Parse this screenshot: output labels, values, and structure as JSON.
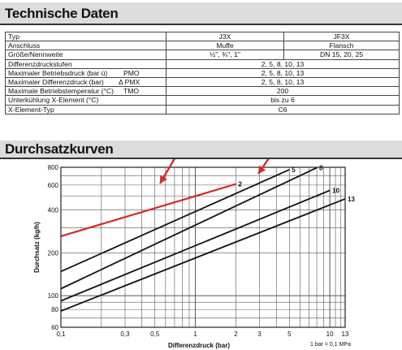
{
  "specs": {
    "title": "Technische Daten",
    "columns": [
      "Typ",
      "J3X",
      "JF3X"
    ],
    "rows": [
      {
        "label": "Anschluss",
        "symbol": "",
        "j3x": "Muffe",
        "jf3x": "Flansch"
      },
      {
        "label": "Größe/Nennweite",
        "symbol": "",
        "j3x": "½\", ¾\", 1\"",
        "jf3x": "DN 15, 20, 25"
      },
      {
        "label": "Differenzdruckstufen",
        "symbol": "",
        "both": "2, 5, 8, 10, 13"
      },
      {
        "label": "Maximaler Betriebsdruck (bar ü)",
        "symbol": "PMO",
        "both": "2, 5, 8, 10, 13"
      },
      {
        "label": "Maximaler Differenzdruck (bar)",
        "symbol": "Δ PMX",
        "both": "2, 5, 8, 10, 13"
      },
      {
        "label": "Maximale Betriebstemperatur (°C)",
        "symbol": "TMO",
        "both": "200"
      },
      {
        "label": "Unterkühlung X-Element (°C)",
        "symbol": "",
        "both": "bis zu 6"
      },
      {
        "label": "X-Element-Typ",
        "symbol": "",
        "both": "C6"
      }
    ]
  },
  "curves": {
    "title": "Durchsatzkurven",
    "footnote": "1 bar = 0,1 MPa"
  },
  "chart_data": {
    "type": "line",
    "xlabel": "Differenzdruck (bar)",
    "ylabel": "Durchsatz (kg/h)",
    "x_scale": "log",
    "y_scale": "log",
    "xlim": [
      0.1,
      13
    ],
    "ylim": [
      60,
      800
    ],
    "x_ticks": [
      "0,1",
      "0,3",
      "0,5",
      "1",
      "2",
      "3",
      "5",
      "10",
      "13"
    ],
    "y_ticks": [
      "60",
      "80",
      "100",
      "200",
      "400",
      "600",
      "800"
    ],
    "grid": true,
    "series": [
      {
        "name": "2",
        "points": [
          [
            0.1,
            262
          ],
          [
            2,
            610
          ]
        ],
        "highlight": true
      },
      {
        "name": "5",
        "points": [
          [
            0.1,
            148
          ],
          [
            5,
            770
          ]
        ]
      },
      {
        "name": "8",
        "points": [
          [
            0.1,
            112
          ],
          [
            8,
            795
          ]
        ]
      },
      {
        "name": "10",
        "points": [
          [
            0.1,
            92
          ],
          [
            10,
            550
          ]
        ]
      },
      {
        "name": "13",
        "points": [
          [
            0.1,
            78
          ],
          [
            13,
            480
          ]
        ]
      }
    ],
    "colors": {
      "highlight": "#d42a2a",
      "line": "#111111",
      "grid": "#555555"
    }
  }
}
